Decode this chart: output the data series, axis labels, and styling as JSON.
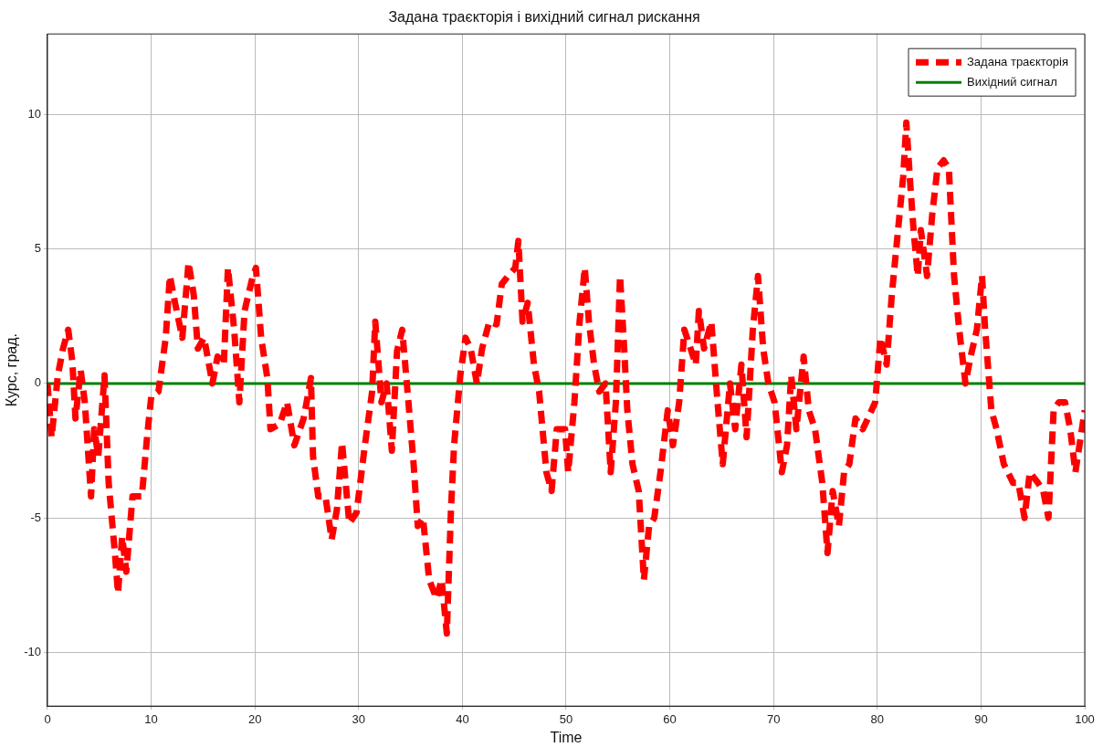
{
  "chart_data": {
    "type": "line",
    "title": "Задана траєкторія і вихідний сигнал рискання",
    "xlabel": "Time",
    "ylabel": "Курс, град.",
    "xlim": [
      0,
      100
    ],
    "xticks": [
      0,
      10,
      20,
      30,
      40,
      50,
      60,
      70,
      80,
      90,
      100
    ],
    "ylim": [
      -12,
      13
    ],
    "yticks": [
      -10,
      -5,
      0,
      5,
      10
    ],
    "grid": true,
    "legend": "top right",
    "marker": "none",
    "series": [
      {
        "name": "Задана траєкторія",
        "color": "#ff0000",
        "line_style": "dashed",
        "x": [
          0,
          0.4,
          1,
          1.5,
          2,
          2.4,
          2.7,
          3.2,
          3.6,
          4.2,
          4.5,
          4.9,
          5.5,
          5.9,
          6.5,
          6.8,
          7.2,
          7.6,
          8.2,
          9.1,
          9.6,
          10,
          10.7,
          11.4,
          11.8,
          12.3,
          13,
          13.6,
          14.1,
          14.5,
          15.1,
          15.9,
          16.4,
          17,
          17.4,
          18,
          18.5,
          19,
          19.8,
          20.1,
          20.6,
          21.2,
          21.5,
          22.4,
          23.1,
          23.8,
          24.7,
          25.4,
          25.6,
          26.1,
          26.8,
          27.4,
          27.9,
          28.4,
          29.1,
          29.8,
          30.6,
          31.3,
          31.6,
          32.2,
          32.7,
          33.2,
          33.7,
          34.2,
          34.8,
          35.3,
          35.7,
          36.2,
          36.8,
          37.5,
          38,
          38.5,
          38.9,
          39.2,
          39.8,
          40.3,
          40.8,
          41.4,
          41.9,
          42.6,
          43.3,
          43.8,
          44.4,
          45.1,
          45.4,
          45.8,
          46.3,
          46.9,
          47.4,
          48.1,
          48.6,
          49.1,
          49.9,
          50.2,
          50.8,
          51.3,
          51.8,
          52.2,
          52.7,
          53.2,
          53.8,
          54.3,
          54.8,
          55.2,
          55.6,
          55.9,
          56.4,
          57,
          57.5,
          58,
          58.5,
          59.1,
          59.8,
          60.3,
          60.9,
          61.4,
          62,
          62.5,
          62.8,
          63.3,
          64,
          64.6,
          65.1,
          65.8,
          66.3,
          66.9,
          67.4,
          68,
          68.5,
          69,
          69.5,
          70.1,
          70.8,
          71.3,
          71.7,
          72.2,
          72.9,
          73.4,
          74,
          74.7,
          75.2,
          75.7,
          76.3,
          76.8,
          77.3,
          77.9,
          78.6,
          79.1,
          79.8,
          80.3,
          80.9,
          81.4,
          82,
          82.5,
          82.8,
          83.2,
          83.5,
          83.9,
          84.2,
          84.8,
          85.3,
          85.8,
          86.4,
          86.9,
          87.4,
          87.9,
          88.5,
          89,
          89.6,
          90.1,
          90.4,
          91,
          91.5,
          92.2,
          93.1,
          93.6,
          94.2,
          94.7,
          95.5,
          96,
          96.5,
          97,
          97.5,
          98.1,
          98.6,
          99.1,
          100
        ],
        "values": [
          0,
          -2,
          0.3,
          1.3,
          2,
          0.8,
          -1.3,
          0.5,
          -0.7,
          -4.2,
          -1.7,
          -2.7,
          0.3,
          -3.7,
          -6.3,
          -7.8,
          -5.7,
          -7,
          -4.2,
          -4.2,
          -2,
          -0.5,
          -0.3,
          1.7,
          4,
          3,
          1.7,
          4.5,
          3.3,
          1.3,
          1.7,
          0,
          1,
          0.7,
          4.3,
          2,
          -0.7,
          2.7,
          4,
          4.3,
          1.7,
          0.2,
          -1.7,
          -1.5,
          -0.7,
          -2.3,
          -1.3,
          0.2,
          -2.7,
          -4.2,
          -4.2,
          -5.8,
          -4.7,
          -2.2,
          -5.2,
          -4.8,
          -2.3,
          -0.3,
          2.3,
          -0.7,
          0,
          -2.5,
          1.2,
          2,
          -0.7,
          -3,
          -5.3,
          -5,
          -7.3,
          -8,
          -7.3,
          -9.3,
          -4.7,
          -2.3,
          0.3,
          1.7,
          1.3,
          0,
          1.3,
          2.3,
          2.2,
          3.7,
          4,
          4.3,
          5.3,
          2.3,
          3,
          0.7,
          -0.3,
          -3.3,
          -4,
          -1.7,
          -1.7,
          -3.3,
          -0.7,
          2.3,
          4.3,
          2.3,
          0.7,
          -0.3,
          0,
          -3.3,
          -0.7,
          4,
          1.3,
          -1,
          -3,
          -4,
          -7.3,
          -5.3,
          -5,
          -3.3,
          -1,
          -2.3,
          -0.7,
          2,
          1.3,
          0.7,
          2.7,
          1.3,
          2.3,
          -0.7,
          -3,
          0,
          -1.7,
          0.7,
          -2,
          2,
          4,
          1.3,
          0,
          -0.7,
          -3.3,
          -2.3,
          0.3,
          -1.7,
          1,
          -1,
          -1.7,
          -3.7,
          -6.3,
          -4,
          -5.3,
          -3.3,
          -3,
          -1.3,
          -1.7,
          -1.3,
          -0.7,
          1.7,
          0.7,
          3.3,
          5.7,
          7.7,
          9.7,
          7.3,
          5.7,
          4,
          5.7,
          4,
          6.3,
          8,
          8.3,
          8,
          4,
          2,
          0,
          1,
          2,
          4,
          2,
          -1,
          -1.7,
          -3,
          -3.7,
          -3.7,
          -5,
          -3.3,
          -3.7,
          -4,
          -5,
          -1,
          -0.7,
          -0.7,
          -1.7,
          -3.3,
          -1
        ]
      },
      {
        "name": "Вихідний сигнал",
        "color": "#008000",
        "line_style": "solid",
        "x": [
          0,
          25,
          50,
          75,
          100
        ],
        "values": [
          0,
          0,
          0,
          0,
          0
        ]
      }
    ]
  }
}
